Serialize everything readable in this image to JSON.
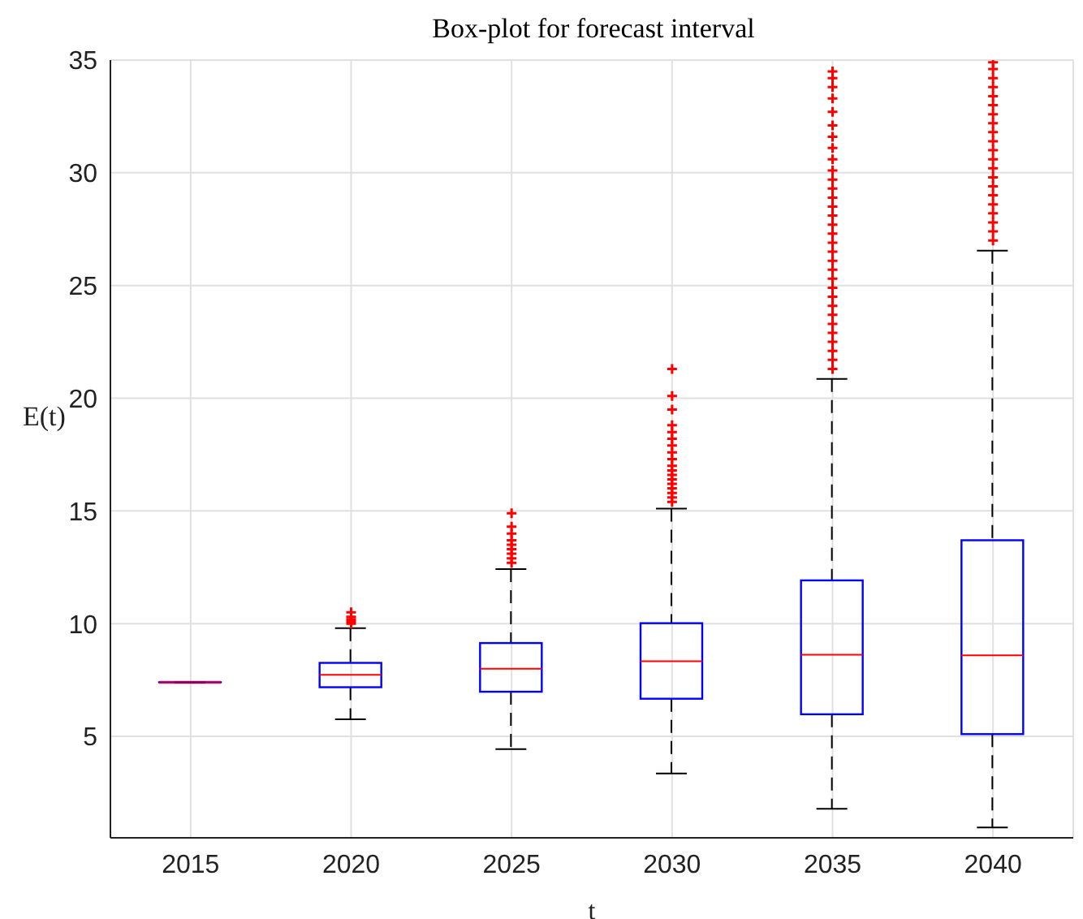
{
  "chart_data": {
    "type": "box",
    "title": "Box-plot for forecast interval",
    "xlabel": "t",
    "ylabel": "E(t)",
    "categories": [
      "2015",
      "2020",
      "2025",
      "2030",
      "2035",
      "2040"
    ],
    "series": [
      {
        "color": "#0000ff",
        "boxes": [
          {
            "low": 7.4,
            "q1": 7.4,
            "median": 7.4,
            "q3": 7.4,
            "high": 7.4
          },
          {
            "low": 5.76,
            "q1": 7.18,
            "median": 7.73,
            "q3": 8.26,
            "high": 9.8,
            "outliers": [
              10.0,
              10.1,
              10.2,
              10.3,
              10.5
            ]
          },
          {
            "low": 4.43,
            "q1": 6.98,
            "median": 8.0,
            "q3": 9.14,
            "high": 12.42,
            "outliers": [
              12.7,
              12.9,
              13.1,
              13.3,
              13.5,
              13.7,
              14.0,
              14.3,
              14.9
            ]
          },
          {
            "low": 3.35,
            "q1": 6.67,
            "median": 8.33,
            "q3": 10.02,
            "high": 15.1,
            "outliers": [
              15.4,
              15.6,
              15.8,
              16.0,
              16.2,
              16.4,
              16.6,
              16.8,
              17.0,
              17.3,
              17.6,
              17.9,
              18.2,
              18.5,
              18.8,
              19.5,
              20.1,
              21.3
            ]
          },
          {
            "low": 1.79,
            "q1": 5.98,
            "median": 8.62,
            "q3": 11.92,
            "high": 20.86,
            "outliers": [
              21.3,
              21.7,
              22.1,
              22.5,
              22.9,
              23.3,
              23.7,
              24.1,
              24.5,
              24.9,
              25.3,
              25.7,
              26.1,
              26.5,
              26.9,
              27.3,
              27.7,
              28.1,
              28.5,
              28.9,
              29.3,
              29.7,
              30.1,
              30.6,
              31.1,
              31.6,
              32.1,
              32.7,
              33.3,
              33.8,
              34.2,
              34.5
            ]
          },
          {
            "low": 0.96,
            "q1": 5.1,
            "median": 8.59,
            "q3": 13.7,
            "high": 26.55,
            "outliers": [
              27.0,
              27.4,
              27.8,
              28.2,
              28.6,
              29.0,
              29.4,
              29.8,
              30.2,
              30.6,
              31.0,
              31.4,
              31.8,
              32.2,
              32.6,
              33.0,
              33.4,
              33.8,
              34.2,
              34.6,
              34.9
            ]
          }
        ]
      }
    ],
    "ylim": [
      0.5,
      35
    ],
    "yticks": [
      5,
      10,
      15,
      20,
      25,
      30,
      35
    ],
    "grid": true
  }
}
